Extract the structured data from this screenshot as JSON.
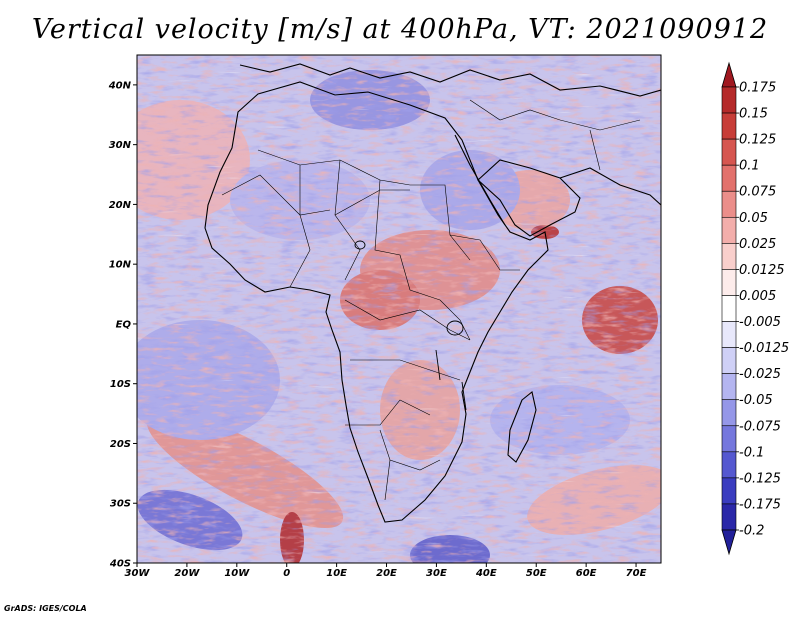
{
  "title": "Vertical velocity [m/s] at 400hPa, VT: 2021090912",
  "credit": "GrADS: IGES/COLA",
  "map": {
    "region": "Africa",
    "variable": "Vertical velocity",
    "units": "m/s",
    "level": "400hPa",
    "valid_time": "2021090912",
    "lon_range": [
      -30,
      75
    ],
    "lat_range": [
      -40,
      45
    ],
    "lon_ticks": [
      {
        "value": -30,
        "label": "30W"
      },
      {
        "value": -20,
        "label": "20W"
      },
      {
        "value": -10,
        "label": "10W"
      },
      {
        "value": 0,
        "label": "0"
      },
      {
        "value": 10,
        "label": "10E"
      },
      {
        "value": 20,
        "label": "20E"
      },
      {
        "value": 30,
        "label": "30E"
      },
      {
        "value": 40,
        "label": "40E"
      },
      {
        "value": 50,
        "label": "50E"
      },
      {
        "value": 60,
        "label": "60E"
      },
      {
        "value": 70,
        "label": "70E"
      }
    ],
    "lat_ticks": [
      {
        "value": 40,
        "label": "40N"
      },
      {
        "value": 30,
        "label": "30N"
      },
      {
        "value": 20,
        "label": "20N"
      },
      {
        "value": 10,
        "label": "10N"
      },
      {
        "value": 0,
        "label": "EQ"
      },
      {
        "value": -10,
        "label": "10S"
      },
      {
        "value": -20,
        "label": "20S"
      },
      {
        "value": -30,
        "label": "30S"
      },
      {
        "value": -40,
        "label": "40S"
      }
    ]
  },
  "colorbar": {
    "levels": [
      {
        "label": "0.175",
        "color": "#a01820"
      },
      {
        "label": "0.15",
        "color": "#b52a2a"
      },
      {
        "label": "0.125",
        "color": "#c73d38"
      },
      {
        "label": "0.1",
        "color": "#d65650"
      },
      {
        "label": "0.075",
        "color": "#e2716c"
      },
      {
        "label": "0.05",
        "color": "#eb8e8a"
      },
      {
        "label": "0.025",
        "color": "#f3aeab"
      },
      {
        "label": "0.0125",
        "color": "#f9cfcc"
      },
      {
        "label": "0.005",
        "color": "#fdeceb"
      },
      {
        "label": "-0.005",
        "color": "#ffffff"
      },
      {
        "label": "-0.0125",
        "color": "#e8e8fb"
      },
      {
        "label": "-0.025",
        "color": "#cfd0f6"
      },
      {
        "label": "-0.05",
        "color": "#b4b5f0"
      },
      {
        "label": "-0.075",
        "color": "#9597e8"
      },
      {
        "label": "-0.1",
        "color": "#7577dd"
      },
      {
        "label": "-0.125",
        "color": "#5558d0"
      },
      {
        "label": "-0.175",
        "color": "#3a3cbf"
      },
      {
        "label": "-0.2",
        "color": "#2a27a8"
      }
    ],
    "end_top_color": "#a01820",
    "end_bottom_color": "#22209a"
  },
  "colors": {
    "background_mid": "#c8c4ec",
    "positive_accent": "#d35a52",
    "negative_accent": "#4b49c4",
    "coastline": "#000000"
  }
}
